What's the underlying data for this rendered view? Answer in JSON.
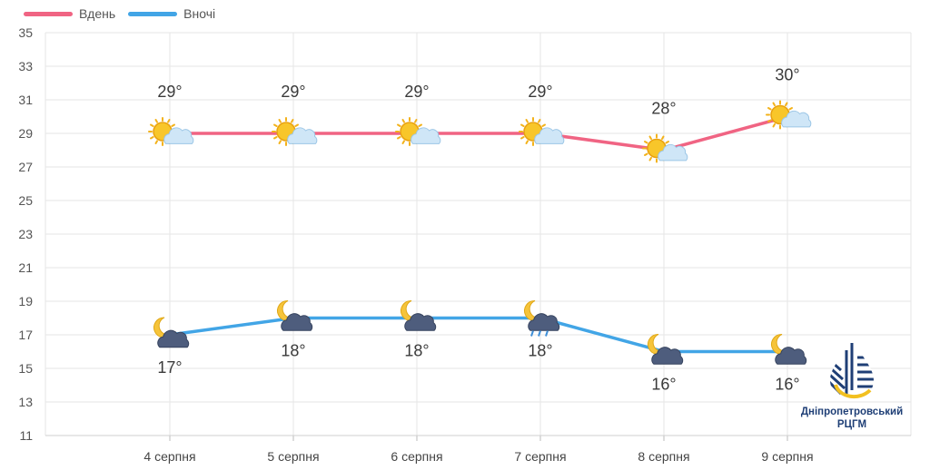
{
  "chart_data": {
    "type": "line",
    "categories": [
      "4 серпня",
      "5 серпня",
      "6 серпня",
      "7 серпня",
      "8 серпня",
      "9 серпня"
    ],
    "series": [
      {
        "name": "Вдень",
        "color": "#f06483",
        "values": [
          29,
          29,
          29,
          29,
          28,
          30
        ],
        "labels": [
          "29°",
          "29°",
          "29°",
          "29°",
          "28°",
          "30°"
        ],
        "icons": [
          "sun-cloud-icon",
          "sun-cloud-icon",
          "sun-cloud-icon",
          "sun-cloud-icon",
          "sun-cloud-icon",
          "sun-cloud-icon"
        ]
      },
      {
        "name": "Вночі",
        "color": "#42a5e6",
        "values": [
          17,
          18,
          18,
          18,
          16,
          16
        ],
        "labels": [
          "17°",
          "18°",
          "18°",
          "18°",
          "16°",
          "16°"
        ],
        "icons": [
          "moon-cloud-icon",
          "moon-cloud-icon",
          "moon-cloud-icon",
          "moon-rain-cloud-icon",
          "moon-cloud-icon",
          "moon-cloud-icon"
        ]
      }
    ],
    "yticks": [
      11,
      13,
      15,
      17,
      19,
      21,
      23,
      25,
      27,
      29,
      31,
      33,
      35
    ],
    "ylim": [
      11,
      35
    ],
    "grid": true,
    "legend_position": "top-left"
  },
  "logo": {
    "line1": "Дніпропетровський",
    "line2": "РЦГМ"
  }
}
